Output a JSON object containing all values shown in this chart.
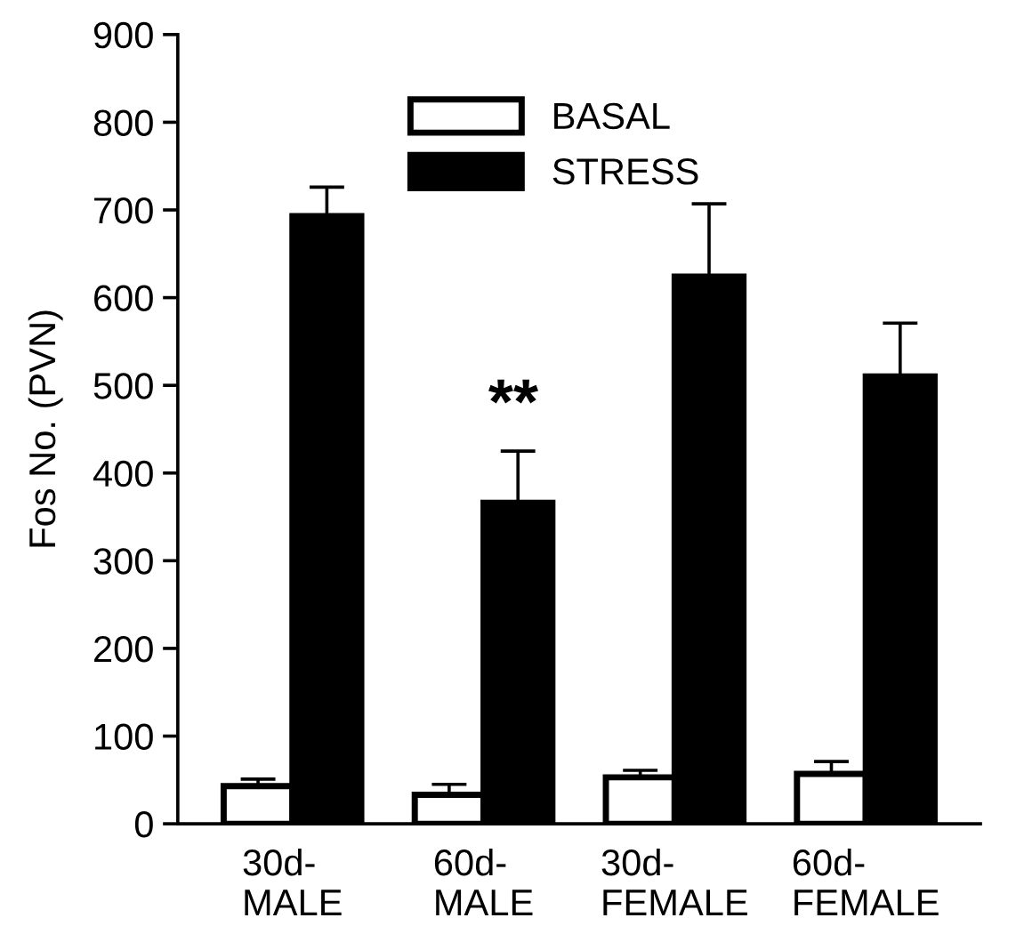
{
  "chart_data": {
    "type": "bar",
    "ylabel": "Fos No. (PVN)",
    "categories": [
      "30d-\nMALE",
      "60d-\nMALE",
      "30d-\nFEMALE",
      "60d-\nFEMALE"
    ],
    "series": [
      {
        "name": "BASAL",
        "color": "#ffffff",
        "values": [
          43,
          33,
          53,
          57
        ],
        "errors": [
          [
            43,
            51
          ],
          [
            33,
            45
          ],
          [
            53,
            61
          ],
          [
            57,
            71
          ]
        ]
      },
      {
        "name": "STRESS",
        "color": "#000000",
        "values": [
          693,
          366,
          624,
          510
        ],
        "errors": [
          [
            693,
            726
          ],
          [
            366,
            425
          ],
          [
            624,
            707
          ],
          [
            510,
            571
          ]
        ]
      }
    ],
    "ylim": [
      0,
      900
    ],
    "yticks": [
      0,
      100,
      200,
      300,
      400,
      500,
      600,
      700,
      800,
      900
    ],
    "annotations": [
      "**"
    ],
    "legend": "top",
    "grid": false
  }
}
